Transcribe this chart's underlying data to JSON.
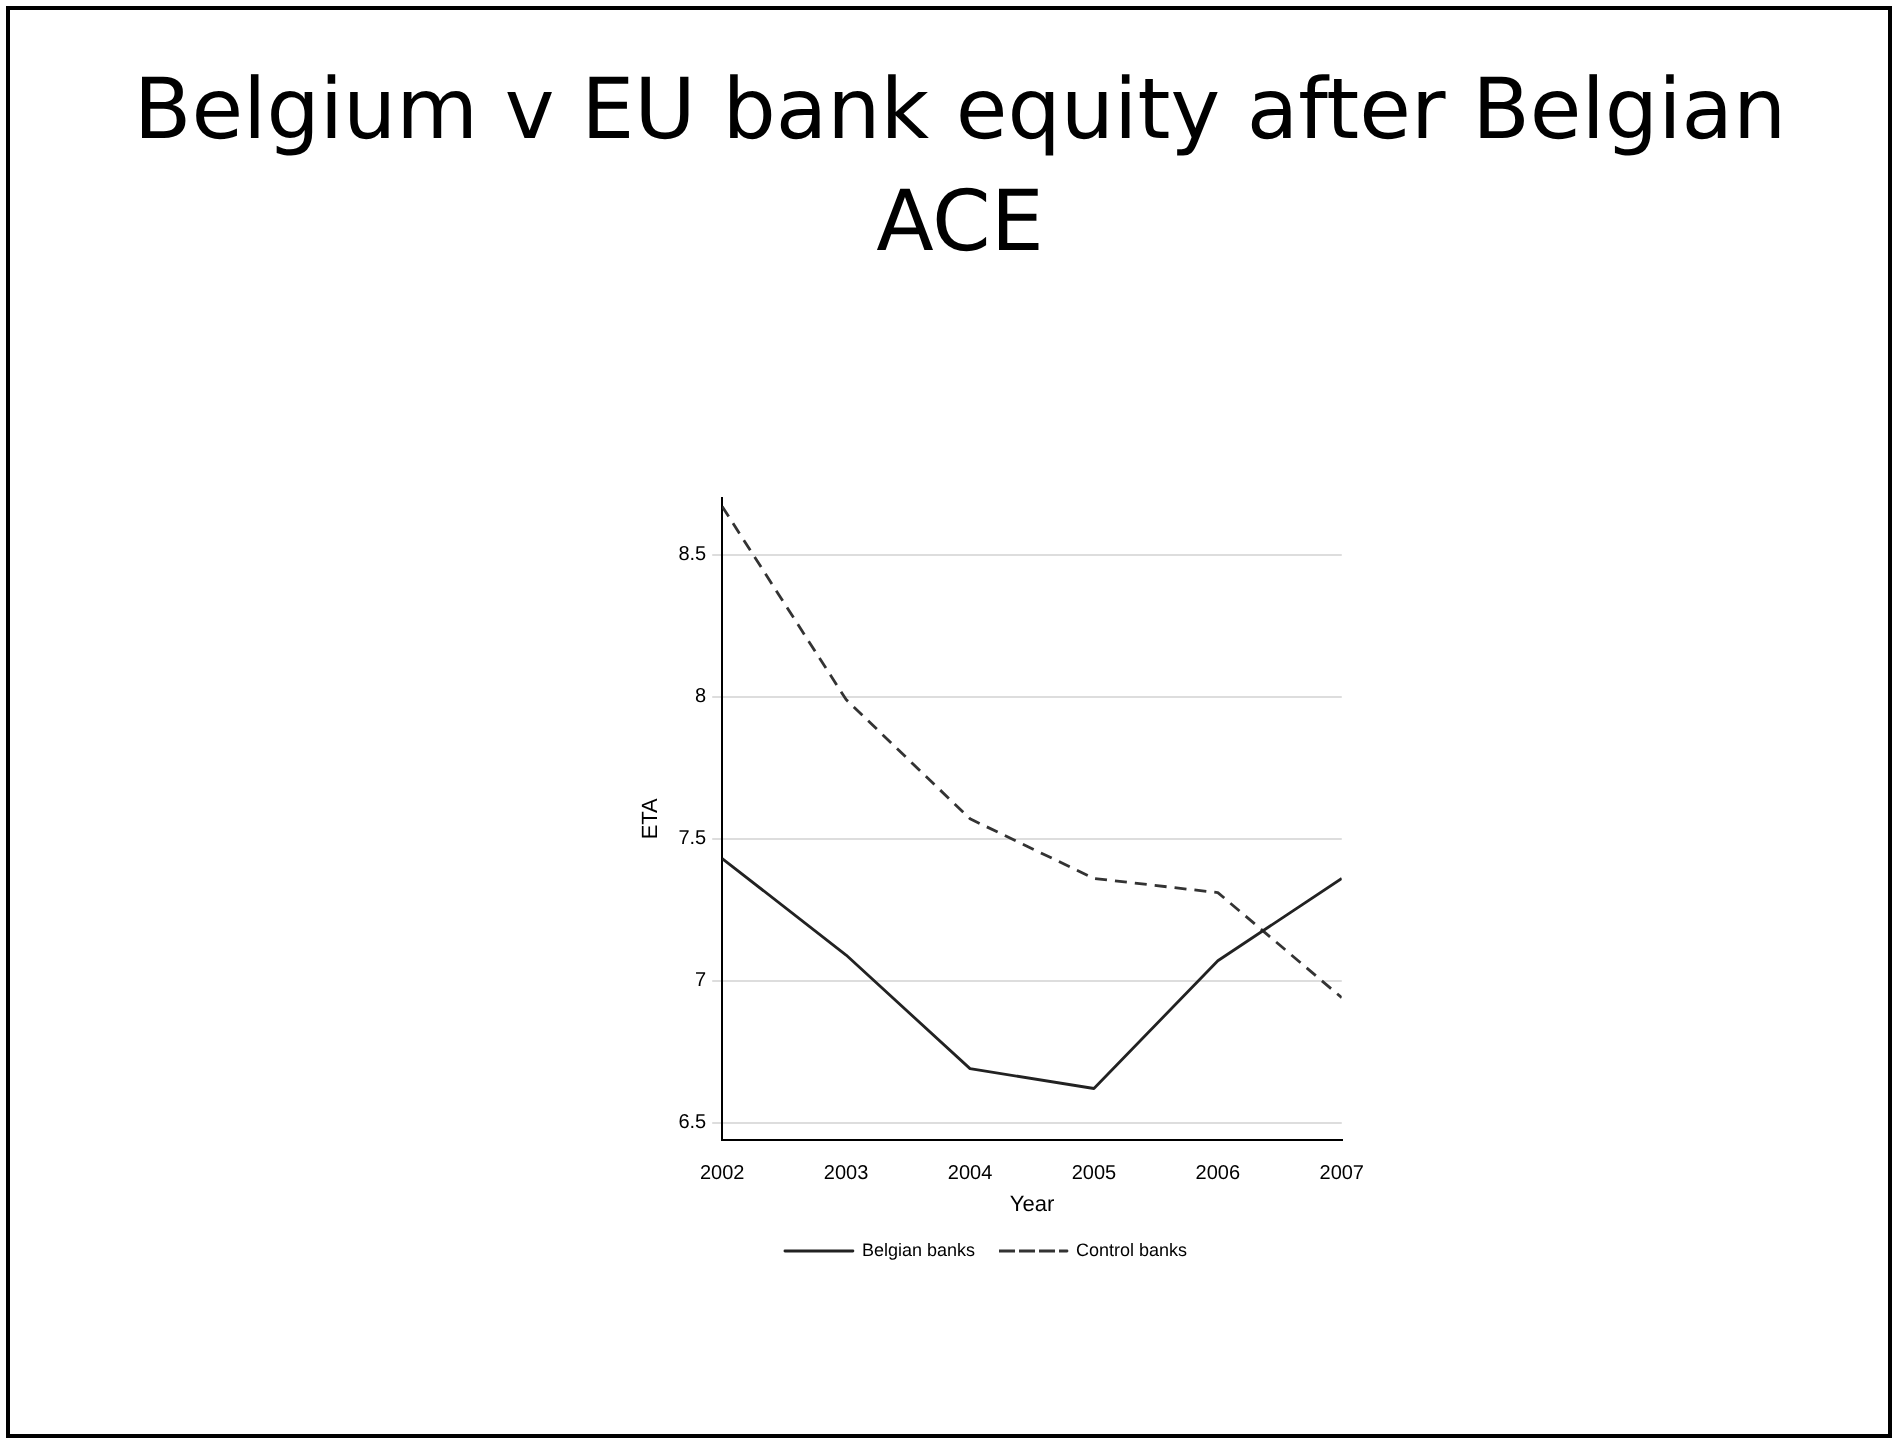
{
  "chart_data": {
    "type": "line",
    "title": "Belgium v EU bank equity after Belgian ACE",
    "xlabel": "Year",
    "ylabel": "ETA",
    "x": [
      2002,
      2003,
      2004,
      2005,
      2006,
      2007
    ],
    "series": [
      {
        "name": "Belgian banks",
        "color": "#222222",
        "line_style": "solid",
        "values": [
          7.43,
          7.09,
          6.69,
          6.62,
          7.07,
          7.36
        ]
      },
      {
        "name": "Control banks",
        "color": "#333333",
        "line_style": "dashed",
        "values": [
          8.67,
          7.99,
          7.57,
          7.36,
          7.31,
          6.94
        ]
      }
    ],
    "xlim": [
      2002,
      2007
    ],
    "xticks": [
      2002,
      2003,
      2004,
      2005,
      2006,
      2007
    ],
    "ylim": [
      6.44,
      8.7
    ],
    "yticks": [
      6.5,
      7,
      7.5,
      8,
      8.5
    ],
    "grid": "y",
    "legend": "bottom",
    "marker": "none"
  }
}
